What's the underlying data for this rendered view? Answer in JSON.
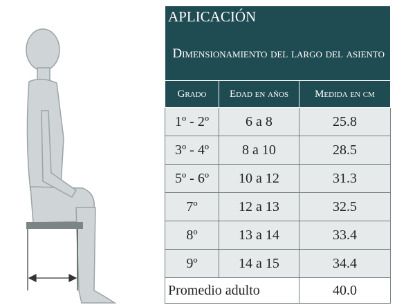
{
  "table": {
    "title": "APLICACIÓN",
    "subtitle": "Dimensionamiento del largo del asiento",
    "headers": [
      "Grado",
      "Edad en años",
      "Medida en cm"
    ],
    "rows": [
      [
        "1º - 2º",
        "6 a 8",
        "25.8"
      ],
      [
        "3º - 4º",
        "8 a 10",
        "28.5"
      ],
      [
        "5º - 6º",
        "10 a 12",
        "31.3"
      ],
      [
        "7º",
        "12 a 13",
        "32.5"
      ],
      [
        "8º",
        "13 a 14",
        "33.4"
      ],
      [
        "9º",
        "14 a 15",
        "34.4"
      ]
    ],
    "footer": [
      "Promedio adulto",
      "40.0"
    ]
  }
}
